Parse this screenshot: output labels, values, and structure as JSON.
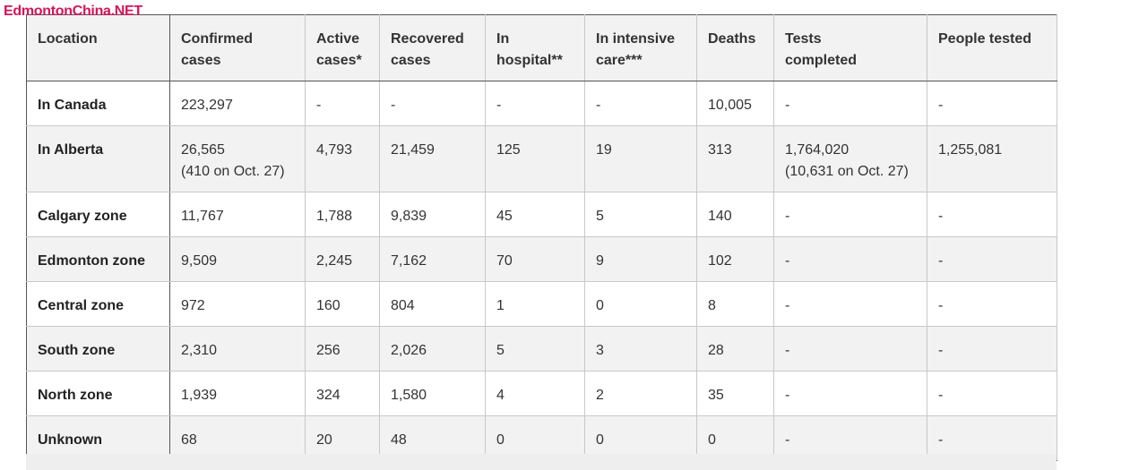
{
  "watermark": "EdmontonChina.NET",
  "table": {
    "headers": {
      "location": "Location",
      "confirmed": [
        "Confirmed",
        "cases"
      ],
      "active": [
        "Active",
        "cases*"
      ],
      "recovered": [
        "Recovered",
        "cases"
      ],
      "hospital": [
        "In",
        "hospital**"
      ],
      "icu": [
        "In intensive",
        "care***"
      ],
      "deaths": "Deaths",
      "tests": [
        "Tests",
        "completed"
      ],
      "people": "People tested"
    },
    "rows": [
      {
        "location": "In Canada",
        "confirmed": "223,297",
        "confirmed_sub": "",
        "active": "-",
        "recovered": "-",
        "hospital": "-",
        "icu": "-",
        "deaths": "10,005",
        "tests": "-",
        "tests_sub": "",
        "people": "-"
      },
      {
        "location": "In Alberta",
        "confirmed": "26,565",
        "confirmed_sub": "(410 on Oct. 27)",
        "active": "4,793",
        "recovered": "21,459",
        "hospital": "125",
        "icu": "19",
        "deaths": "313",
        "tests": "1,764,020",
        "tests_sub": "(10,631 on Oct. 27)",
        "people": "1,255,081"
      },
      {
        "location": "Calgary zone",
        "confirmed": "11,767",
        "confirmed_sub": "",
        "active": "1,788",
        "recovered": "9,839",
        "hospital": "45",
        "icu": "5",
        "deaths": "140",
        "tests": "-",
        "tests_sub": "",
        "people": "-"
      },
      {
        "location": "Edmonton zone",
        "confirmed": "9,509",
        "confirmed_sub": "",
        "active": "2,245",
        "recovered": "7,162",
        "hospital": "70",
        "icu": "9",
        "deaths": "102",
        "tests": "-",
        "tests_sub": "",
        "people": "-"
      },
      {
        "location": "Central zone",
        "confirmed": "972",
        "confirmed_sub": "",
        "active": "160",
        "recovered": "804",
        "hospital": "1",
        "icu": "0",
        "deaths": "8",
        "tests": "-",
        "tests_sub": "",
        "people": "-"
      },
      {
        "location": "South zone",
        "confirmed": "2,310",
        "confirmed_sub": "",
        "active": "256",
        "recovered": "2,026",
        "hospital": "5",
        "icu": "3",
        "deaths": "28",
        "tests": "-",
        "tests_sub": "",
        "people": "-"
      },
      {
        "location": "North zone",
        "confirmed": "1,939",
        "confirmed_sub": "",
        "active": "324",
        "recovered": "1,580",
        "hospital": "4",
        "icu": "2",
        "deaths": "35",
        "tests": "-",
        "tests_sub": "",
        "people": "-"
      },
      {
        "location": "Unknown",
        "confirmed": "68",
        "confirmed_sub": "",
        "active": "20",
        "recovered": "48",
        "hospital": "0",
        "icu": "0",
        "deaths": "0",
        "tests": "-",
        "tests_sub": "",
        "people": "-"
      }
    ]
  }
}
